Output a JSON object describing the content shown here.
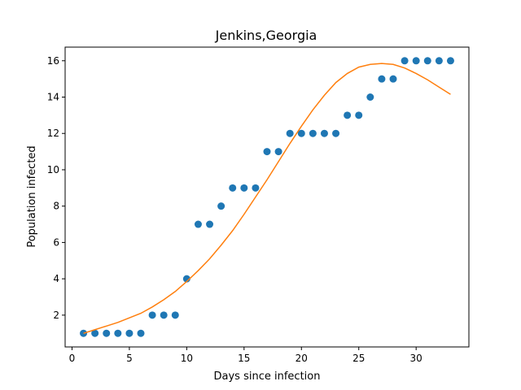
{
  "chart_data": {
    "type": "scatter",
    "title": "Jenkins,Georgia",
    "xlabel": "Days since infection",
    "ylabel": "Population infected",
    "xlim": [
      -0.6,
      34.6
    ],
    "ylim": [
      0.25,
      16.75
    ],
    "xticks": [
      0,
      5,
      10,
      15,
      20,
      25,
      30
    ],
    "yticks": [
      2,
      4,
      6,
      8,
      10,
      12,
      14,
      16
    ],
    "grid": false,
    "series": [
      {
        "kind": "scatter",
        "color": "#1f77b4",
        "x": [
          1,
          2,
          3,
          4,
          5,
          6,
          7,
          8,
          9,
          10,
          11,
          12,
          13,
          14,
          15,
          16,
          17,
          18,
          19,
          20,
          21,
          22,
          23,
          24,
          25,
          26,
          27,
          28,
          29,
          30,
          31,
          32,
          33
        ],
        "y": [
          1,
          1,
          1,
          1,
          1,
          1,
          2,
          2,
          2,
          4,
          7,
          7,
          8,
          9,
          9,
          9,
          11,
          11,
          12,
          12,
          12,
          12,
          12,
          13,
          13,
          14,
          15,
          15,
          16,
          16,
          16,
          16,
          16
        ]
      },
      {
        "kind": "line",
        "color": "#ff7f0e",
        "x": [
          1,
          2,
          3,
          4,
          5,
          6,
          7,
          8,
          9,
          10,
          11,
          12,
          13,
          14,
          15,
          16,
          17,
          18,
          19,
          20,
          21,
          22,
          23,
          24,
          25,
          26,
          27,
          28,
          29,
          30,
          31,
          32,
          33
        ],
        "y": [
          1.0,
          1.2,
          1.4,
          1.6,
          1.85,
          2.1,
          2.45,
          2.85,
          3.3,
          3.85,
          4.45,
          5.1,
          5.85,
          6.65,
          7.55,
          8.5,
          9.45,
          10.45,
          11.45,
          12.4,
          13.3,
          14.1,
          14.8,
          15.3,
          15.65,
          15.8,
          15.85,
          15.8,
          15.6,
          15.3,
          14.95,
          14.55,
          14.15
        ]
      }
    ]
  }
}
